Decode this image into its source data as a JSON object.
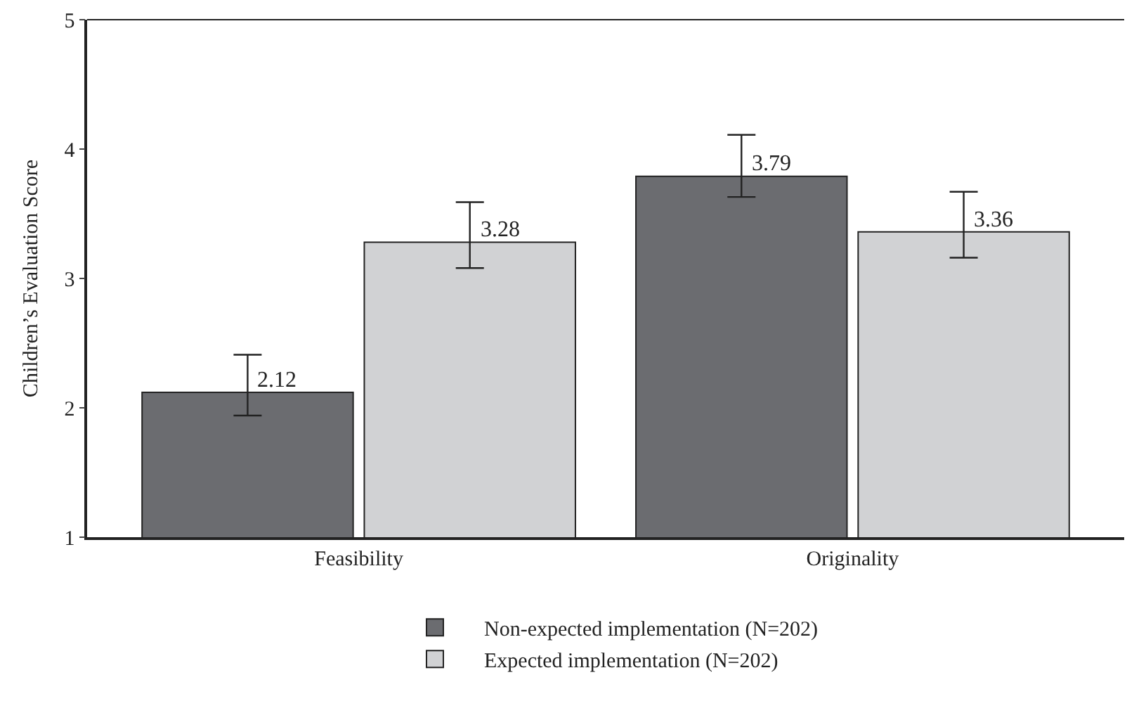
{
  "chart_data": {
    "type": "bar",
    "ylabel": "Children’s Evaluation Score",
    "categories": [
      "Feasibility",
      "Originality"
    ],
    "series": [
      {
        "name": "Non-expected implementation (N=202)",
        "color": "#6b6c70",
        "values": [
          2.12,
          3.79
        ],
        "errors": [
          [
            1.94,
            2.41
          ],
          [
            3.63,
            4.11
          ]
        ]
      },
      {
        "name": "Expected implementation (N=202)",
        "color": "#d1d2d4",
        "values": [
          3.28,
          3.36
        ],
        "errors": [
          [
            3.08,
            3.59
          ],
          [
            3.16,
            3.67
          ]
        ]
      }
    ],
    "ylim": [
      1,
      5
    ],
    "yticks": [
      1,
      2,
      3,
      4,
      5
    ],
    "data_labels": true,
    "legend": "bottom"
  }
}
